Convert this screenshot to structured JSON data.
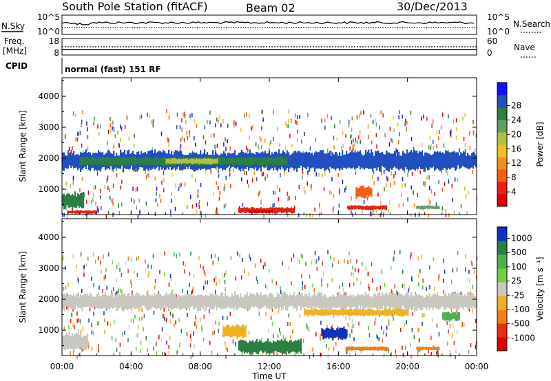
{
  "header": {
    "station": "South Pole Station (fitACF)",
    "beam": "Beam 02",
    "date": "30/Dec/2013"
  },
  "panels": {
    "nsky_label": "N.Sky",
    "nsky_ticks": [
      "10^5",
      "10^0"
    ],
    "nsearch_label": "N.Search",
    "nsearch_ticks": [
      "10^5",
      "10^0"
    ],
    "freq_label_1": "Freq.",
    "freq_label_2": "[MHz]",
    "freq_ticks": [
      "18",
      "8"
    ],
    "nave_label": "Nave",
    "nave_ticks": [
      "60",
      "0"
    ],
    "cpid_label": "CPID",
    "cpid_text": "normal (fast) 151 RF"
  },
  "chart_data": [
    {
      "type": "heatmap",
      "name": "power",
      "xlabel": "Time UT",
      "ylabel": "Slant Range [km]",
      "x_ticks": [
        "00:00",
        "04:00",
        "08:00",
        "12:00",
        "16:00",
        "20:00",
        "00:00"
      ],
      "y_ticks": [
        "1000",
        "2000",
        "3000",
        "4000"
      ],
      "xlim_hours": [
        0,
        24
      ],
      "ylim_km": [
        180,
        4600
      ],
      "colorbar": {
        "label": "Power [dB]",
        "ticks": [
          "4",
          "8",
          "12",
          "16",
          "20",
          "24",
          "28"
        ],
        "colors": [
          "#1010ff",
          "#2050c0",
          "#2a8040",
          "#60a060",
          "#b0c040",
          "#f0c020",
          "#f09020",
          "#f06010",
          "#e82010",
          "#e00000"
        ]
      },
      "bands": [
        {
          "t0": 0.0,
          "t1": 24.0,
          "r": [
            1600,
            2250
          ],
          "color": "#2050c0"
        },
        {
          "t0": 1.0,
          "t1": 13.0,
          "r": [
            1750,
            2050
          ],
          "color": "#2a8040"
        },
        {
          "t0": 6.0,
          "t1": 9.0,
          "r": [
            1800,
            2000
          ],
          "color": "#b0c040"
        },
        {
          "t0": 0.0,
          "t1": 1.2,
          "r": [
            350,
            900
          ],
          "color": "#2a8040"
        },
        {
          "t0": 0.3,
          "t1": 2.0,
          "r": [
            200,
            320
          ],
          "color": "#e82010"
        },
        {
          "t0": 10.2,
          "t1": 13.4,
          "r": [
            220,
            420
          ],
          "color": "#e82010"
        },
        {
          "t0": 10.8,
          "t1": 12.2,
          "r": [
            220,
            330
          ],
          "color": "#e00000"
        },
        {
          "t0": 16.5,
          "t1": 18.8,
          "r": [
            330,
            480
          ],
          "color": "#e82010"
        },
        {
          "t0": 17.0,
          "t1": 17.9,
          "r": [
            700,
            1100
          ],
          "color": "#f06010"
        },
        {
          "t0": 20.5,
          "t1": 21.8,
          "r": [
            350,
            480
          ],
          "color": "#60a060"
        }
      ]
    },
    {
      "type": "heatmap",
      "name": "velocity",
      "xlabel": "Time UT",
      "ylabel": "Slant Range [km]",
      "x_ticks": [
        "00:00",
        "04:00",
        "08:00",
        "12:00",
        "16:00",
        "20:00",
        "00:00"
      ],
      "y_ticks": [
        "1000",
        "2000",
        "3000",
        "4000"
      ],
      "xlim_hours": [
        0,
        24
      ],
      "ylim_km": [
        180,
        4600
      ],
      "colorbar": {
        "label": "Velocity [m s⁻¹]",
        "ticks": [
          "1000",
          "500",
          "100",
          "25",
          "-25",
          "-100",
          "-500",
          "-1000"
        ],
        "colors": [
          "#1030c0",
          "#2a8040",
          "#50b050",
          "#70d040",
          "#c8c8c0",
          "#f0b020",
          "#f08010",
          "#e83010",
          "#e00000"
        ]
      },
      "bands": [
        {
          "t0": 0.0,
          "t1": 24.0,
          "r": [
            1650,
            2200
          ],
          "color": "#c8c8c0"
        },
        {
          "t0": 14.0,
          "t1": 20.0,
          "r": [
            1450,
            1700
          ],
          "color": "#f0b020"
        },
        {
          "t0": 22.0,
          "t1": 23.0,
          "r": [
            1300,
            1600
          ],
          "color": "#50b050"
        },
        {
          "t0": 0.0,
          "t1": 1.5,
          "r": [
            350,
            900
          ],
          "color": "#c8c8c0"
        },
        {
          "t0": 10.2,
          "t1": 13.8,
          "r": [
            220,
            700
          ],
          "color": "#2a8040"
        },
        {
          "t0": 9.3,
          "t1": 10.6,
          "r": [
            700,
            1200
          ],
          "color": "#f0b020"
        },
        {
          "t0": 16.4,
          "t1": 18.8,
          "r": [
            330,
            480
          ],
          "color": "#f08010"
        },
        {
          "t0": 20.5,
          "t1": 21.8,
          "r": [
            350,
            480
          ],
          "color": "#f08010"
        },
        {
          "t0": 15.0,
          "t1": 16.5,
          "r": [
            700,
            1100
          ],
          "color": "#1030c0"
        }
      ]
    }
  ]
}
